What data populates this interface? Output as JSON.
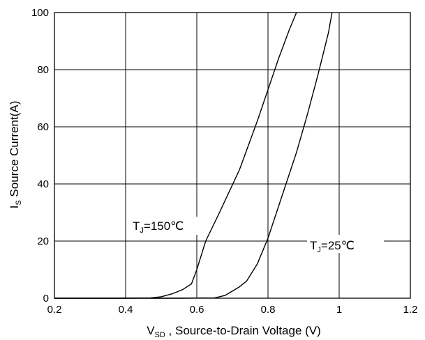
{
  "chart_data": {
    "type": "line",
    "xlabel_main": "V",
    "xlabel_sub": "SD",
    "xlabel_rest": " , Source-to-Drain Voltage (V)",
    "ylabel_main": "I",
    "ylabel_sub": "S",
    "ylabel_rest": " Source Current(A)",
    "xlim": [
      0.2,
      1.2
    ],
    "ylim": [
      0,
      100
    ],
    "x_ticks": [
      "0.2",
      "0.4",
      "0.6",
      "0.8",
      "1",
      "1.2"
    ],
    "x_tick_values": [
      0.2,
      0.4,
      0.6,
      0.8,
      1.0,
      1.2
    ],
    "y_ticks": [
      "0",
      "20",
      "40",
      "60",
      "80",
      "100"
    ],
    "y_tick_values": [
      0,
      20,
      40,
      60,
      80,
      100
    ],
    "grid": true,
    "colors": {
      "line": "#000000",
      "grid": "#000000",
      "background": "#ffffff"
    },
    "series": [
      {
        "x": [
          0.2,
          0.4,
          0.47,
          0.5,
          0.53,
          0.56,
          0.585,
          0.6,
          0.625,
          0.66,
          0.72,
          0.77,
          0.8,
          0.83,
          0.86,
          0.88
        ],
        "y": [
          0,
          0,
          0.1,
          0.5,
          1.5,
          3,
          5,
          10,
          20,
          29,
          45,
          62,
          73,
          84,
          94,
          100
        ]
      },
      {
        "x": [
          0.2,
          0.55,
          0.65,
          0.68,
          0.72,
          0.74,
          0.77,
          0.8,
          0.84,
          0.88,
          0.91,
          0.94,
          0.97,
          0.98
        ],
        "y": [
          0,
          0,
          0.1,
          1,
          4,
          6,
          12,
          21,
          36,
          51,
          64,
          78,
          93,
          100
        ]
      }
    ],
    "annotations": [
      {
        "main": "T",
        "sub": "J",
        "rest": "=150℃"
      },
      {
        "main": "T",
        "sub": "J",
        "rest": "=25℃"
      }
    ]
  }
}
